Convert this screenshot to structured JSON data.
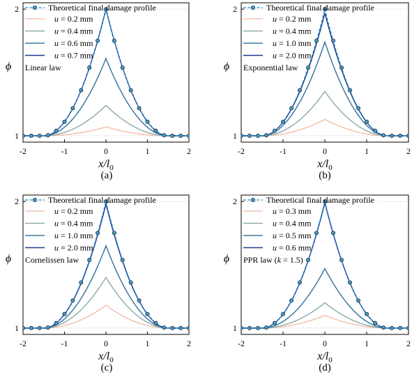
{
  "figure": {
    "panels": [
      {
        "label": "(a)",
        "annotation": "Linear law"
      },
      {
        "label": "(b)",
        "annotation": "Exponential law"
      },
      {
        "label": "(c)",
        "annotation": "Cornelissen law"
      },
      {
        "label": "(d)",
        "annotation": "PPR law (k = 1.5)"
      }
    ]
  },
  "chart_data": [
    {
      "type": "line",
      "panel": "(a)",
      "annotation": "Linear law",
      "ylabel": "ϕ",
      "xlabel": "x/l0",
      "xlim": [
        -2,
        2
      ],
      "ylim": [
        0.95,
        2.05
      ],
      "x_ticks": [
        "-2",
        "-1",
        "0",
        "1",
        "2"
      ],
      "y_ticks": [
        "1",
        "2"
      ],
      "legend_position": "top-left",
      "reference_lines": [
        1,
        2
      ],
      "theoretical": {
        "name": "Theoretical final damage profile",
        "peak": 2,
        "color": "#1f8fd6",
        "marker_color": "#4a9cc4"
      },
      "series": [
        {
          "name": "u = 0.2 mm",
          "u": "0.2",
          "peak": 1.07,
          "color": "#f2c2ad"
        },
        {
          "name": "u = 0.4 mm",
          "u": "0.4",
          "peak": 1.24,
          "color": "#8fb0ac"
        },
        {
          "name": "u = 0.6 mm",
          "u": "0.6",
          "peak": 1.61,
          "color": "#3f78a0"
        },
        {
          "name": "u = 0.7 mm",
          "u": "0.7",
          "peak": 2.0,
          "color": "#1d3a8a"
        }
      ]
    },
    {
      "type": "line",
      "panel": "(b)",
      "annotation": "Exponential law",
      "ylabel": "ϕ",
      "xlabel": "x/l0",
      "xlim": [
        -2,
        2
      ],
      "ylim": [
        0.95,
        2.05
      ],
      "x_ticks": [
        "-2",
        "-1",
        "0",
        "1",
        "2"
      ],
      "y_ticks": [
        "1",
        "2"
      ],
      "legend_position": "top-left",
      "reference_lines": [
        1,
        2
      ],
      "theoretical": {
        "name": "Theoretical final damage profile",
        "peak": 2,
        "color": "#1f8fd6",
        "marker_color": "#4a9cc4"
      },
      "series": [
        {
          "name": "u = 0.2 mm",
          "u": "0.2",
          "peak": 1.13,
          "color": "#f2c2ad"
        },
        {
          "name": "u = 0.4 mm",
          "u": "0.4",
          "peak": 1.35,
          "color": "#8fb0ac"
        },
        {
          "name": "u = 1.0 mm",
          "u": "1.0",
          "peak": 1.74,
          "color": "#3f78a0"
        },
        {
          "name": "u = 2.0 mm",
          "u": "2.0",
          "peak": 1.97,
          "color": "#1d3a8a"
        }
      ]
    },
    {
      "type": "line",
      "panel": "(c)",
      "annotation": "Cornelissen law",
      "ylabel": "ϕ",
      "xlabel": "x/l0",
      "xlim": [
        -2,
        2
      ],
      "ylim": [
        0.95,
        2.05
      ],
      "x_ticks": [
        "-2",
        "-1",
        "0",
        "1",
        "2"
      ],
      "y_ticks": [
        "1",
        "2"
      ],
      "legend_position": "top-left",
      "reference_lines": [
        1,
        2
      ],
      "theoretical": {
        "name": "Theoretical final damage profile",
        "peak": 2,
        "color": "#1f8fd6",
        "marker_color": "#4a9cc4"
      },
      "series": [
        {
          "name": "u = 0.2 mm",
          "u": "0.2",
          "peak": 1.18,
          "color": "#f2c2ad"
        },
        {
          "name": "u = 0.4 mm",
          "u": "0.4",
          "peak": 1.4,
          "color": "#8fb0ac"
        },
        {
          "name": "u = 1.0 mm",
          "u": "1.0",
          "peak": 1.65,
          "color": "#3f78a0"
        },
        {
          "name": "u = 2.0 mm",
          "u": "2.0",
          "peak": 1.98,
          "color": "#1d3a8a"
        }
      ]
    },
    {
      "type": "line",
      "panel": "(d)",
      "annotation": "PPR law (k = 1.5)",
      "ylabel": "ϕ",
      "xlabel": "x/l0",
      "xlim": [
        -2,
        2
      ],
      "ylim": [
        0.95,
        2.05
      ],
      "x_ticks": [
        "-2",
        "-1",
        "0",
        "1",
        "2"
      ],
      "y_ticks": [
        "1",
        "2"
      ],
      "legend_position": "top-left",
      "reference_lines": [
        1,
        2
      ],
      "theoretical": {
        "name": "Theoretical final damage profile",
        "peak": 2,
        "color": "#1f8fd6",
        "marker_color": "#4a9cc4"
      },
      "series": [
        {
          "name": "u = 0.3 mm",
          "u": "0.3",
          "peak": 1.1,
          "color": "#f2c2ad"
        },
        {
          "name": "u = 0.4 mm",
          "u": "0.4",
          "peak": 1.2,
          "color": "#8fb0ac"
        },
        {
          "name": "u = 0.5 mm",
          "u": "0.5",
          "peak": 1.47,
          "color": "#3f78a0"
        },
        {
          "name": "u = 0.6 mm",
          "u": "0.6",
          "peak": 1.99,
          "color": "#1d3a8a"
        }
      ]
    }
  ]
}
